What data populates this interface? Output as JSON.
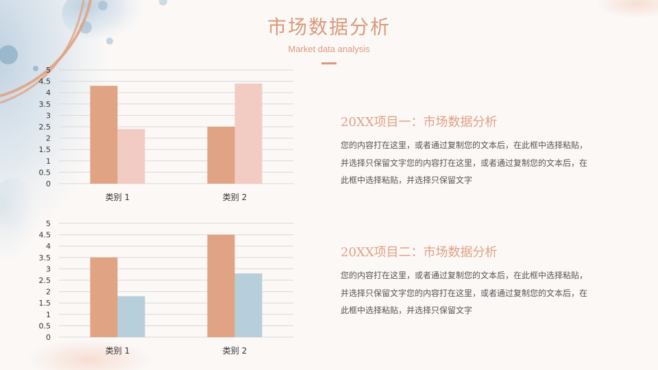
{
  "header": {
    "title": "市场数据分析",
    "subtitle": "Market data analysis"
  },
  "colors": {
    "accent": "#d99a7c",
    "bar_primary": "#e0a383",
    "bar_pink": "#f2ccc2",
    "bar_blue": "#b7cfdb",
    "grid": "#d9d9d9"
  },
  "chart_data": [
    {
      "type": "bar",
      "categories": [
        "类别 1",
        "类别 2"
      ],
      "series": [
        {
          "values": [
            4.3,
            2.5
          ],
          "color": "#e0a383"
        },
        {
          "values": [
            2.4,
            4.4
          ],
          "color": "#f2ccc2"
        }
      ],
      "yticks": [
        "0",
        "0.5",
        "1",
        "1.5",
        "2",
        "2.5",
        "3",
        "3.5",
        "4",
        "4.5",
        "5"
      ],
      "ylim": [
        0,
        5
      ],
      "grid": true
    },
    {
      "type": "bar",
      "categories": [
        "类别 1",
        "类别 2"
      ],
      "series": [
        {
          "values": [
            3.5,
            4.5
          ],
          "color": "#e0a383"
        },
        {
          "values": [
            1.8,
            2.8
          ],
          "color": "#b7cfdb"
        }
      ],
      "yticks": [
        "0",
        "0.5",
        "1",
        "1.5",
        "2",
        "2.5",
        "3",
        "3.5",
        "4",
        "4.5",
        "5"
      ],
      "ylim": [
        0,
        5
      ],
      "grid": true
    }
  ],
  "items": [
    {
      "title": "20XX项目一：市场数据分析",
      "lines": [
        "您的内容打在这里，或者通过复制您的文本后，在此框中选择粘贴，",
        "并选择只保留文字您的内容打在这里，或者通过复制您的文本后，在",
        "此框中选择粘贴，并选择只保留文字"
      ]
    },
    {
      "title": "20XX项目二：市场数据分析",
      "lines": [
        "您的内容打在这里，或者通过复制您的文本后，在此框中选择粘贴，",
        "并选择只保留文字您的内容打在这里，或者通过复制您的文本后，在",
        "此框中选择粘贴，并选择只保留文字"
      ]
    }
  ]
}
